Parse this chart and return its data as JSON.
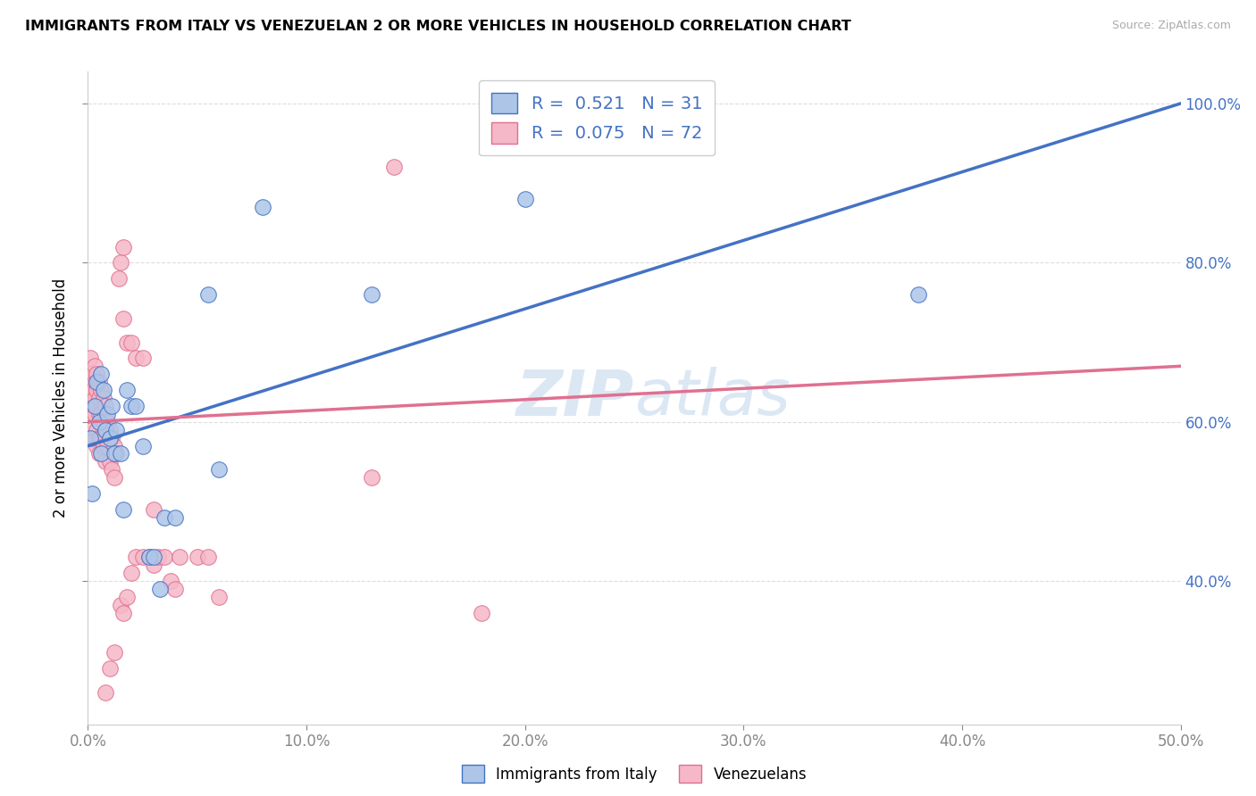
{
  "title": "IMMIGRANTS FROM ITALY VS VENEZUELAN 2 OR MORE VEHICLES IN HOUSEHOLD CORRELATION CHART",
  "source": "Source: ZipAtlas.com",
  "ylabel": "2 or more Vehicles in Household",
  "xmin": 0.0,
  "xmax": 0.5,
  "ymin": 0.22,
  "ymax": 1.04,
  "xtick_labels": [
    "0.0%",
    "10.0%",
    "20.0%",
    "30.0%",
    "40.0%",
    "50.0%"
  ],
  "xtick_vals": [
    0.0,
    0.1,
    0.2,
    0.3,
    0.4,
    0.5
  ],
  "ytick_vals": [
    0.4,
    0.6,
    0.8,
    1.0
  ],
  "right_ytick_labels": [
    "100.0%",
    "80.0%",
    "60.0%",
    "40.0%"
  ],
  "right_ytick_vals": [
    1.0,
    0.8,
    0.6,
    0.4
  ],
  "legend_r1": "R =  0.521   N = 31",
  "legend_r2": "R =  0.075   N = 72",
  "color_blue": "#adc6e8",
  "color_pink": "#f5b8c8",
  "line_blue": "#4472c4",
  "line_pink": "#e07090",
  "legend_text_color": "#4472c4",
  "watermark_color": "#c5d8ee",
  "blue_line_x": [
    0.0,
    0.5
  ],
  "blue_line_y": [
    0.57,
    1.0
  ],
  "pink_line_x": [
    0.0,
    0.5
  ],
  "pink_line_y": [
    0.6,
    0.67
  ],
  "blue_points": [
    [
      0.001,
      0.58
    ],
    [
      0.002,
      0.51
    ],
    [
      0.003,
      0.62
    ],
    [
      0.004,
      0.65
    ],
    [
      0.005,
      0.6
    ],
    [
      0.006,
      0.56
    ],
    [
      0.006,
      0.66
    ],
    [
      0.007,
      0.64
    ],
    [
      0.008,
      0.59
    ],
    [
      0.009,
      0.61
    ],
    [
      0.01,
      0.58
    ],
    [
      0.011,
      0.62
    ],
    [
      0.012,
      0.56
    ],
    [
      0.013,
      0.59
    ],
    [
      0.015,
      0.56
    ],
    [
      0.016,
      0.49
    ],
    [
      0.018,
      0.64
    ],
    [
      0.02,
      0.62
    ],
    [
      0.022,
      0.62
    ],
    [
      0.025,
      0.57
    ],
    [
      0.028,
      0.43
    ],
    [
      0.03,
      0.43
    ],
    [
      0.033,
      0.39
    ],
    [
      0.035,
      0.48
    ],
    [
      0.04,
      0.48
    ],
    [
      0.055,
      0.76
    ],
    [
      0.06,
      0.54
    ],
    [
      0.08,
      0.87
    ],
    [
      0.13,
      0.76
    ],
    [
      0.2,
      0.88
    ],
    [
      0.38,
      0.76
    ]
  ],
  "pink_points": [
    [
      0.001,
      0.68
    ],
    [
      0.001,
      0.65
    ],
    [
      0.001,
      0.62
    ],
    [
      0.001,
      0.59
    ],
    [
      0.002,
      0.66
    ],
    [
      0.002,
      0.64
    ],
    [
      0.002,
      0.61
    ],
    [
      0.002,
      0.58
    ],
    [
      0.003,
      0.67
    ],
    [
      0.003,
      0.65
    ],
    [
      0.003,
      0.63
    ],
    [
      0.003,
      0.61
    ],
    [
      0.003,
      0.58
    ],
    [
      0.004,
      0.66
    ],
    [
      0.004,
      0.64
    ],
    [
      0.004,
      0.62
    ],
    [
      0.004,
      0.59
    ],
    [
      0.004,
      0.57
    ],
    [
      0.005,
      0.65
    ],
    [
      0.005,
      0.63
    ],
    [
      0.005,
      0.61
    ],
    [
      0.005,
      0.58
    ],
    [
      0.005,
      0.56
    ],
    [
      0.006,
      0.64
    ],
    [
      0.006,
      0.61
    ],
    [
      0.006,
      0.58
    ],
    [
      0.007,
      0.63
    ],
    [
      0.007,
      0.6
    ],
    [
      0.007,
      0.57
    ],
    [
      0.008,
      0.62
    ],
    [
      0.008,
      0.59
    ],
    [
      0.008,
      0.55
    ],
    [
      0.009,
      0.6
    ],
    [
      0.009,
      0.57
    ],
    [
      0.01,
      0.59
    ],
    [
      0.01,
      0.55
    ],
    [
      0.011,
      0.58
    ],
    [
      0.011,
      0.54
    ],
    [
      0.012,
      0.57
    ],
    [
      0.012,
      0.53
    ],
    [
      0.013,
      0.56
    ],
    [
      0.014,
      0.78
    ],
    [
      0.015,
      0.8
    ],
    [
      0.016,
      0.82
    ],
    [
      0.016,
      0.73
    ],
    [
      0.018,
      0.7
    ],
    [
      0.02,
      0.7
    ],
    [
      0.022,
      0.68
    ],
    [
      0.025,
      0.68
    ],
    [
      0.008,
      0.26
    ],
    [
      0.01,
      0.29
    ],
    [
      0.012,
      0.31
    ],
    [
      0.015,
      0.37
    ],
    [
      0.016,
      0.36
    ],
    [
      0.018,
      0.38
    ],
    [
      0.02,
      0.41
    ],
    [
      0.022,
      0.43
    ],
    [
      0.025,
      0.43
    ],
    [
      0.028,
      0.43
    ],
    [
      0.03,
      0.49
    ],
    [
      0.03,
      0.42
    ],
    [
      0.032,
      0.43
    ],
    [
      0.035,
      0.43
    ],
    [
      0.038,
      0.4
    ],
    [
      0.04,
      0.39
    ],
    [
      0.042,
      0.43
    ],
    [
      0.05,
      0.43
    ],
    [
      0.055,
      0.43
    ],
    [
      0.06,
      0.38
    ],
    [
      0.13,
      0.53
    ],
    [
      0.18,
      0.36
    ],
    [
      0.14,
      0.92
    ]
  ],
  "grid_color": "#dddddd",
  "bg_color": "#ffffff"
}
